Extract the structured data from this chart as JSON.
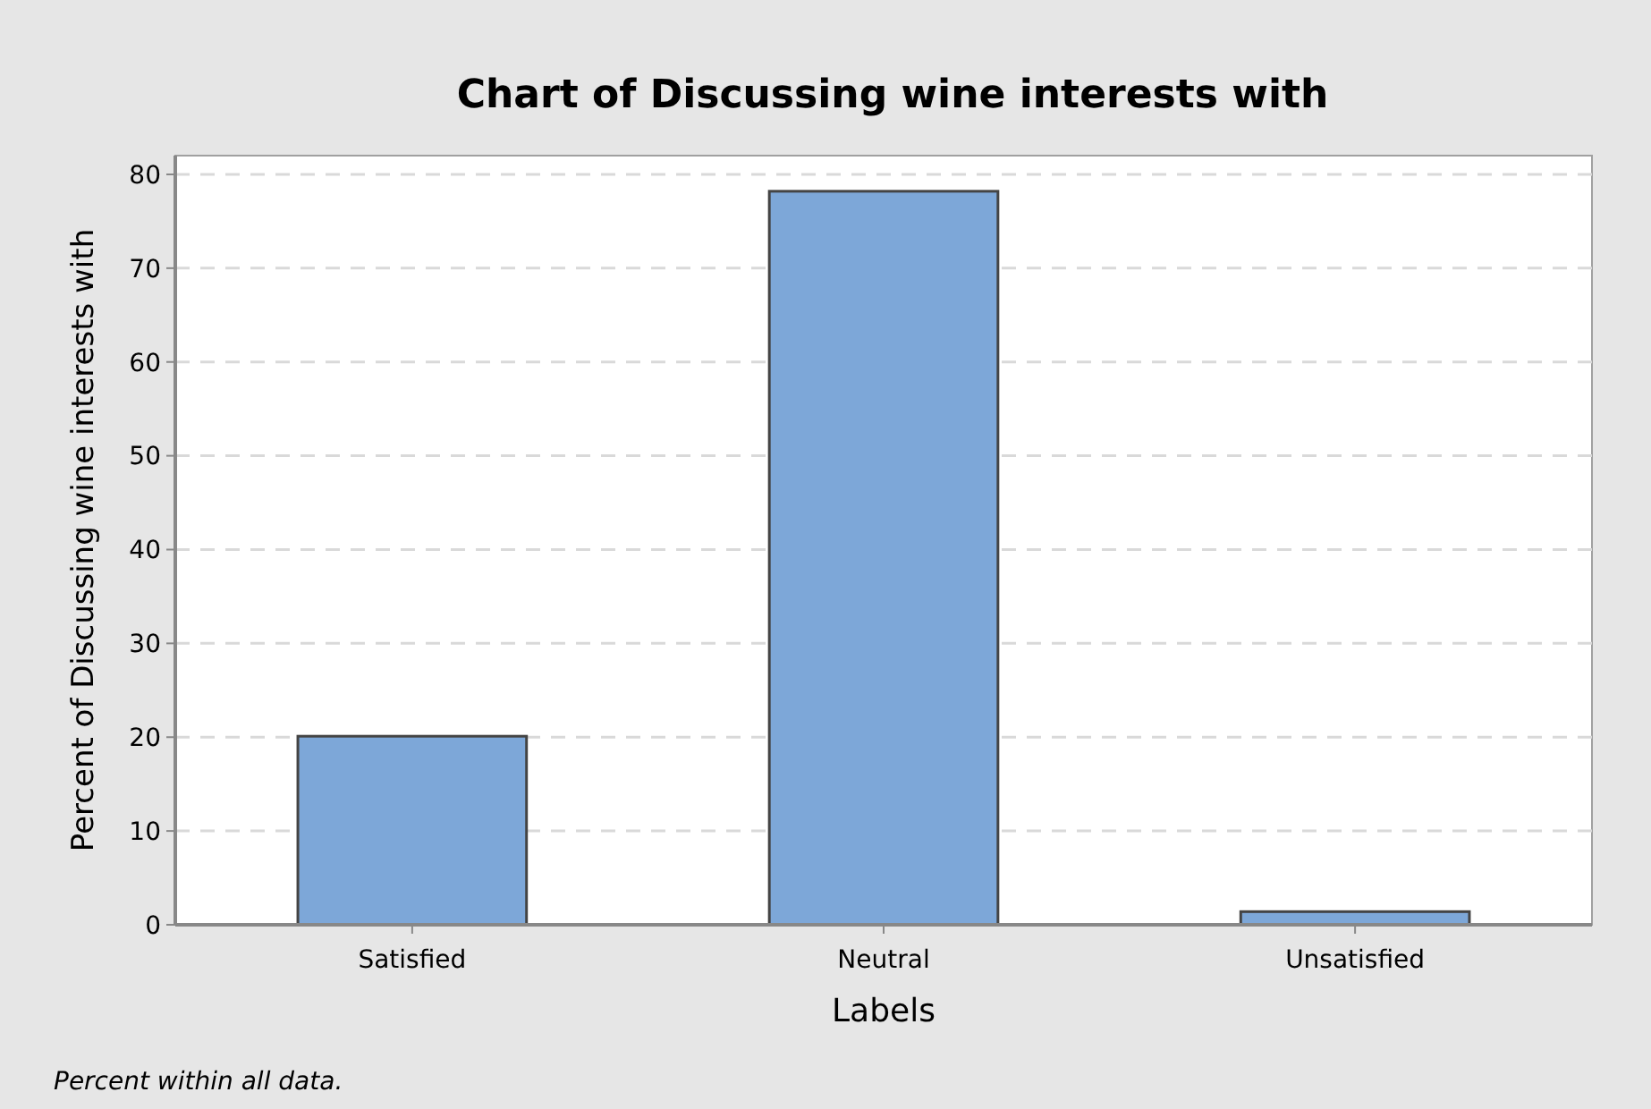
{
  "chart_data": {
    "type": "bar",
    "title": "Chart of Discussing wine interests with",
    "xlabel": "Labels",
    "ylabel": "Percent of Discussing wine interests with",
    "categories": [
      "Satisfied",
      "Neutral",
      "Unsatisfied"
    ],
    "values": [
      20.1,
      78.2,
      1.4
    ],
    "color": "#7da7d8",
    "ylim": [
      0,
      82
    ],
    "yticks": [
      0,
      10,
      20,
      30,
      40,
      50,
      60,
      70,
      80
    ],
    "grid": "y",
    "annotations": [
      "Percent within all data."
    ]
  }
}
